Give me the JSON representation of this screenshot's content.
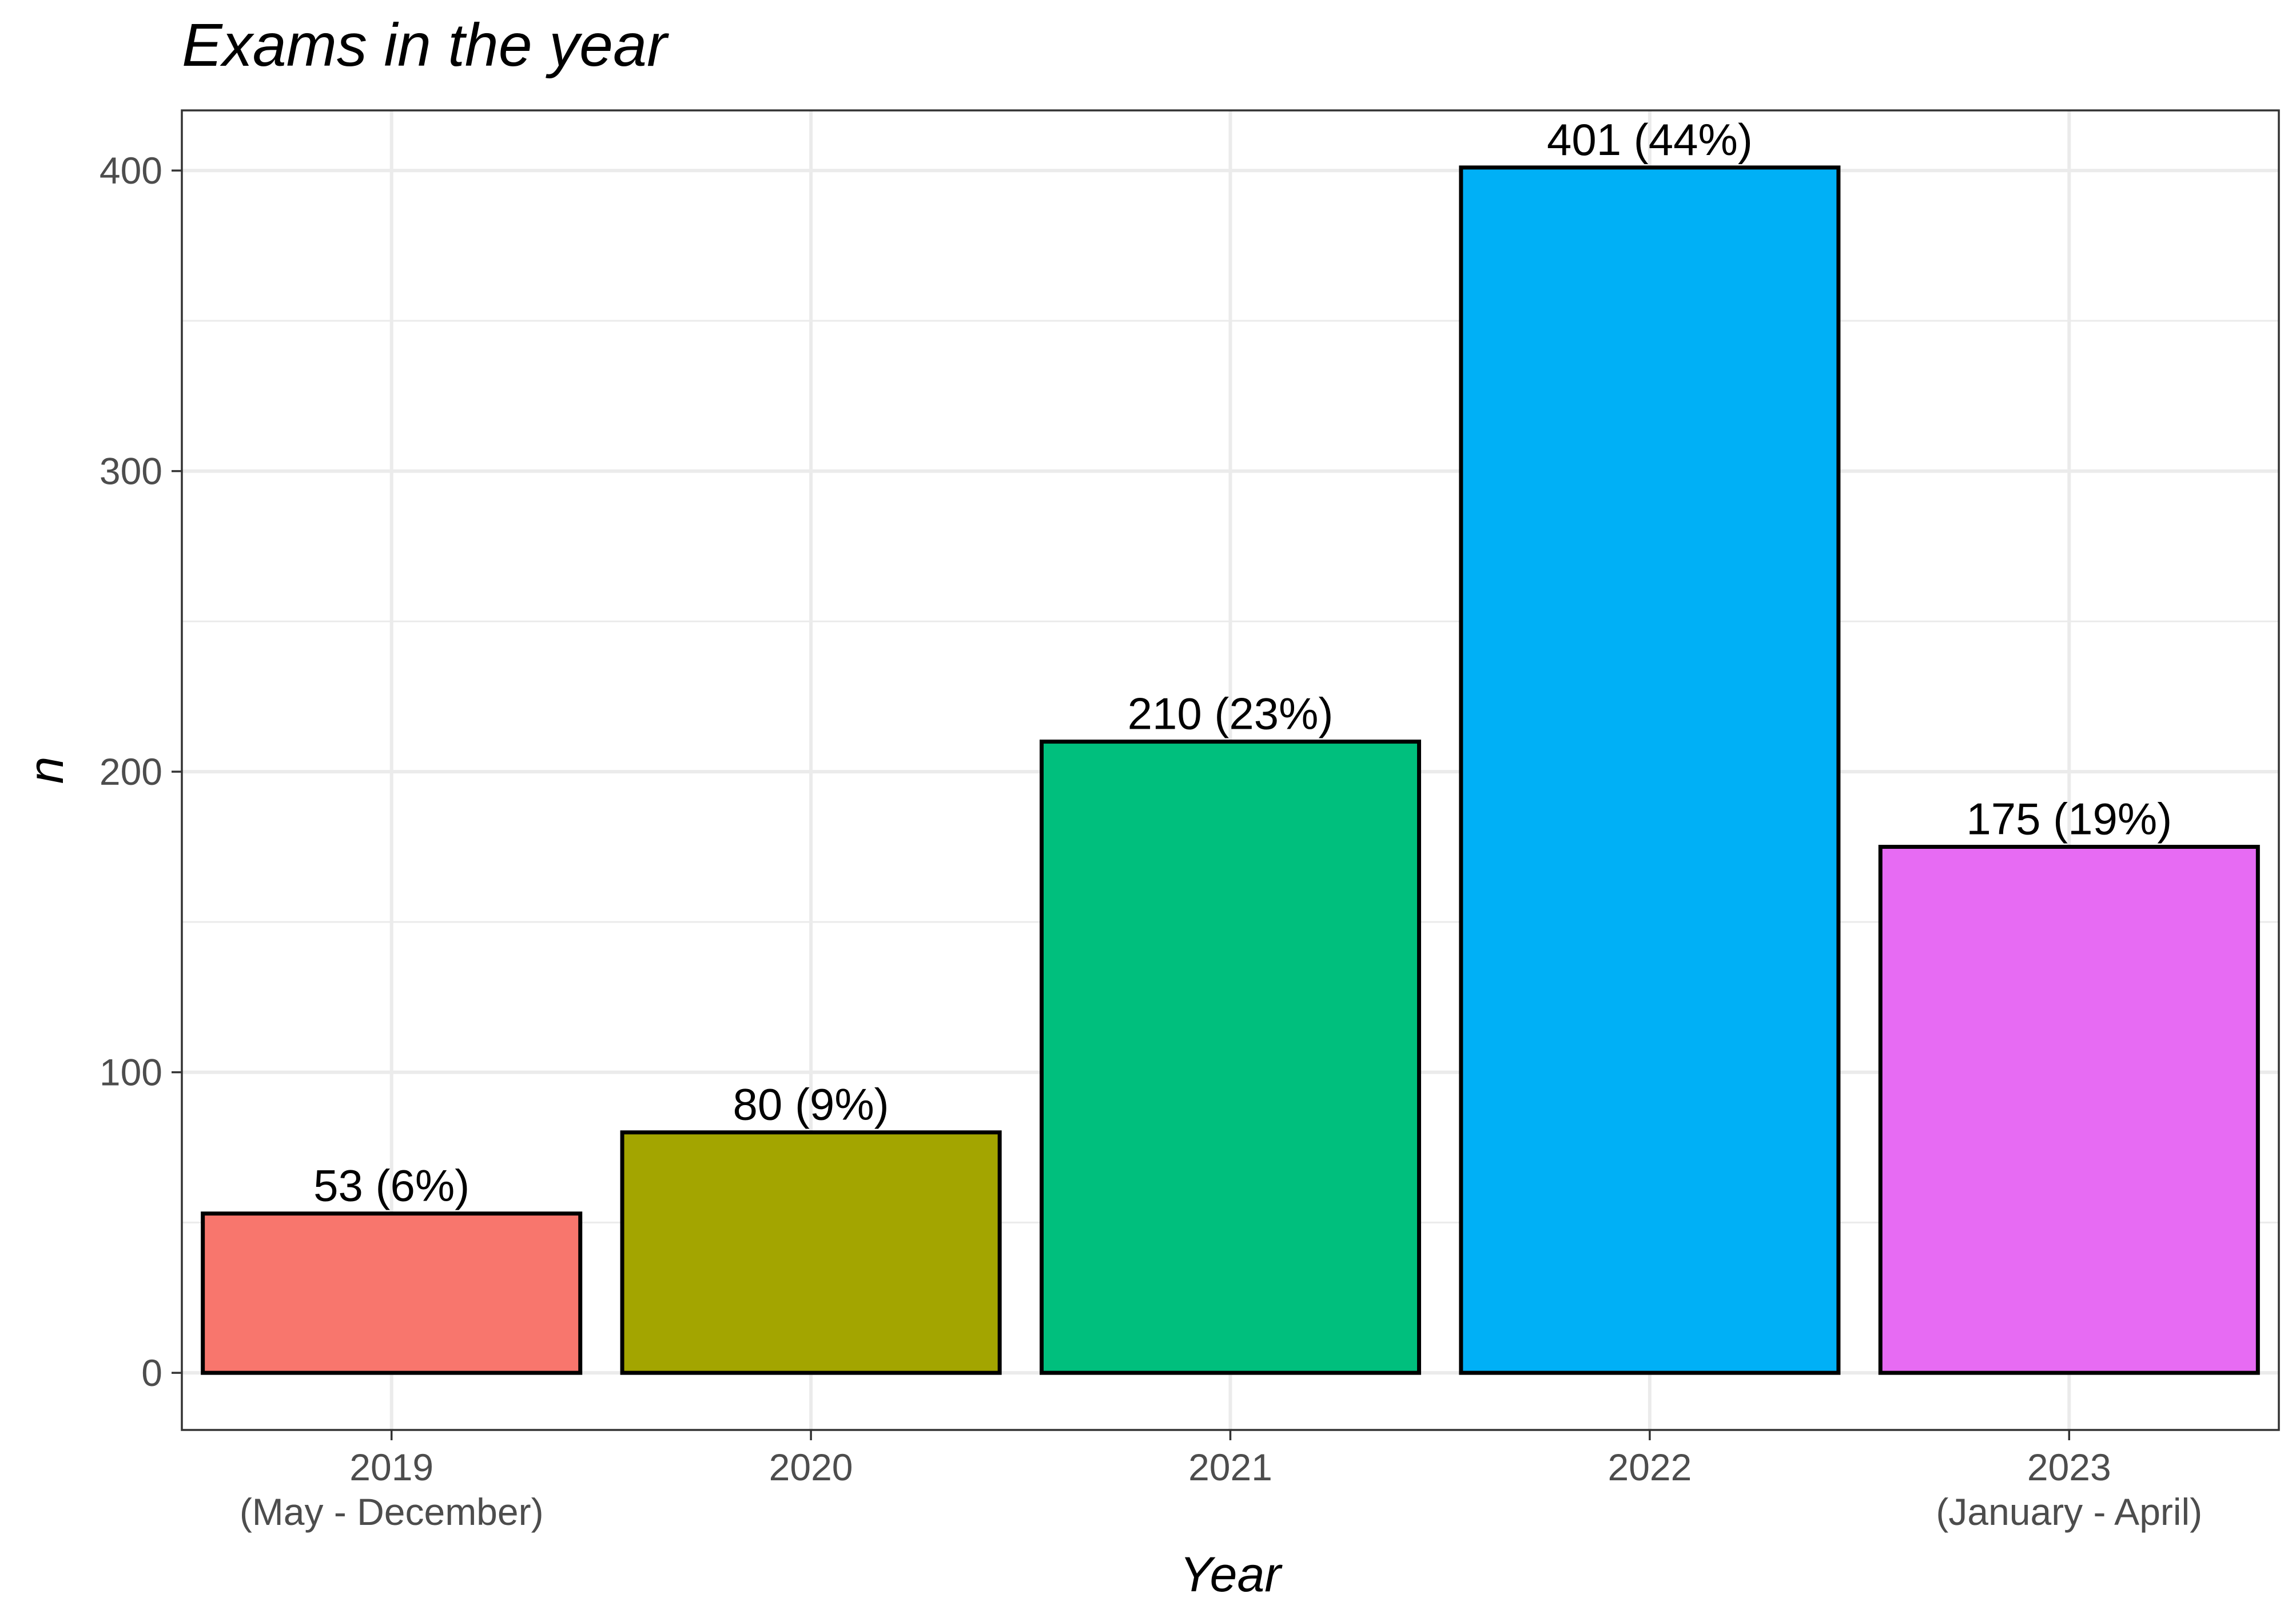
{
  "chart_data": {
    "type": "bar",
    "title": "Exams in the year",
    "xlabel": "Year",
    "ylabel": "n",
    "categories": [
      [
        "2019",
        "(May - December)"
      ],
      [
        "2020"
      ],
      [
        "2021"
      ],
      [
        "2022"
      ],
      [
        "2023",
        "(January - April)"
      ]
    ],
    "values": [
      53,
      80,
      210,
      401,
      175
    ],
    "data_labels": [
      "53 (6%)",
      "80 (9%)",
      "210 (23%)",
      "401 (44%)",
      "175 (19%)"
    ],
    "colors": [
      "#F8766D",
      "#A3A500",
      "#00BF7D",
      "#00B0F6",
      "#E76BF3"
    ],
    "ylim": [
      -19,
      420
    ],
    "yticks": [
      0,
      100,
      200,
      300,
      400
    ],
    "yticks_minor": [
      50,
      150,
      250,
      350
    ],
    "grid": true,
    "legend": "none"
  }
}
